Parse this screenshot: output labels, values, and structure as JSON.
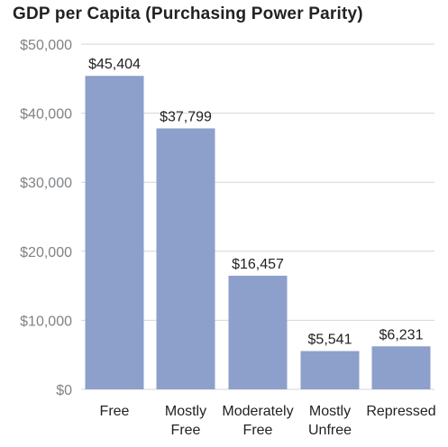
{
  "chart_data": {
    "type": "bar",
    "title": "GDP per Capita (Purchasing Power Parity)",
    "categories": [
      [
        "Free"
      ],
      [
        "Mostly",
        "Free"
      ],
      [
        "Moderately",
        "Free"
      ],
      [
        "Mostly",
        "Unfree"
      ],
      [
        "Repressed"
      ]
    ],
    "values": [
      45404,
      37799,
      16457,
      5541,
      6231
    ],
    "value_labels": [
      "$45,404",
      "$37,799",
      "$16,457",
      "$5,541",
      "$6,231"
    ],
    "yticks": [
      0,
      10000,
      20000,
      30000,
      40000,
      50000
    ],
    "ytick_labels": [
      "$0",
      "$10,000",
      "$20,000",
      "$30,000",
      "$40,000",
      "$50,000"
    ],
    "ylim": [
      0,
      50000
    ],
    "grid": true,
    "xlabel": "",
    "ylabel": "",
    "colors": {
      "bar": "#8d9fcb",
      "grid": "#d3d5d6",
      "tick_text": "#7f8386",
      "text": "#222222"
    }
  }
}
